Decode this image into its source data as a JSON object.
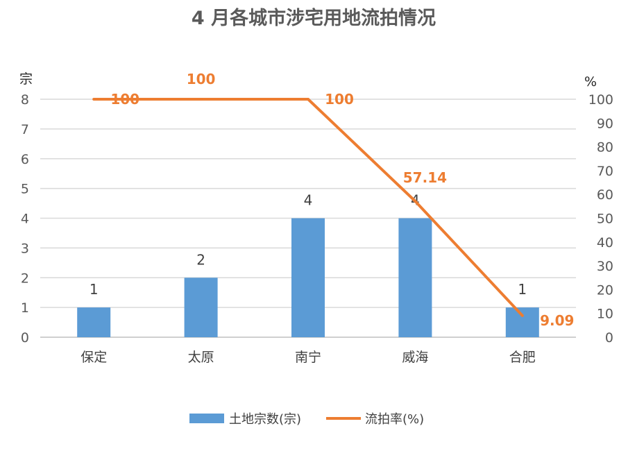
{
  "chart_data": {
    "type": "bar",
    "title": "4 月各城市涉宅用地流拍情况",
    "categories": [
      "保定",
      "太原",
      "南宁",
      "威海",
      "合肥"
    ],
    "y_left_label": "宗",
    "y_right_label": "%",
    "y_left_ticks": [
      "0",
      "1",
      "2",
      "3",
      "4",
      "5",
      "6",
      "7",
      "8"
    ],
    "y_right_ticks": [
      "0",
      "10",
      "20",
      "30",
      "40",
      "50",
      "60",
      "70",
      "80",
      "90",
      "100"
    ],
    "ylim_left": [
      0,
      8
    ],
    "ylim_right": [
      0,
      100
    ],
    "grid": true,
    "legend_position": "bottom",
    "series": [
      {
        "name": "土地宗数(宗)",
        "type": "bar",
        "axis": "left",
        "color": "#5b9bd5",
        "values": [
          1,
          2,
          4,
          4,
          1
        ],
        "labels": [
          "1",
          "2",
          "4",
          "4",
          "1"
        ]
      },
      {
        "name": "流拍率(%)",
        "type": "line",
        "axis": "right",
        "color": "#ed7d31",
        "values": [
          100,
          100,
          100,
          57.14,
          9.09
        ],
        "labels": [
          "100",
          "100",
          "100",
          "57.14",
          "9.09"
        ]
      }
    ]
  }
}
